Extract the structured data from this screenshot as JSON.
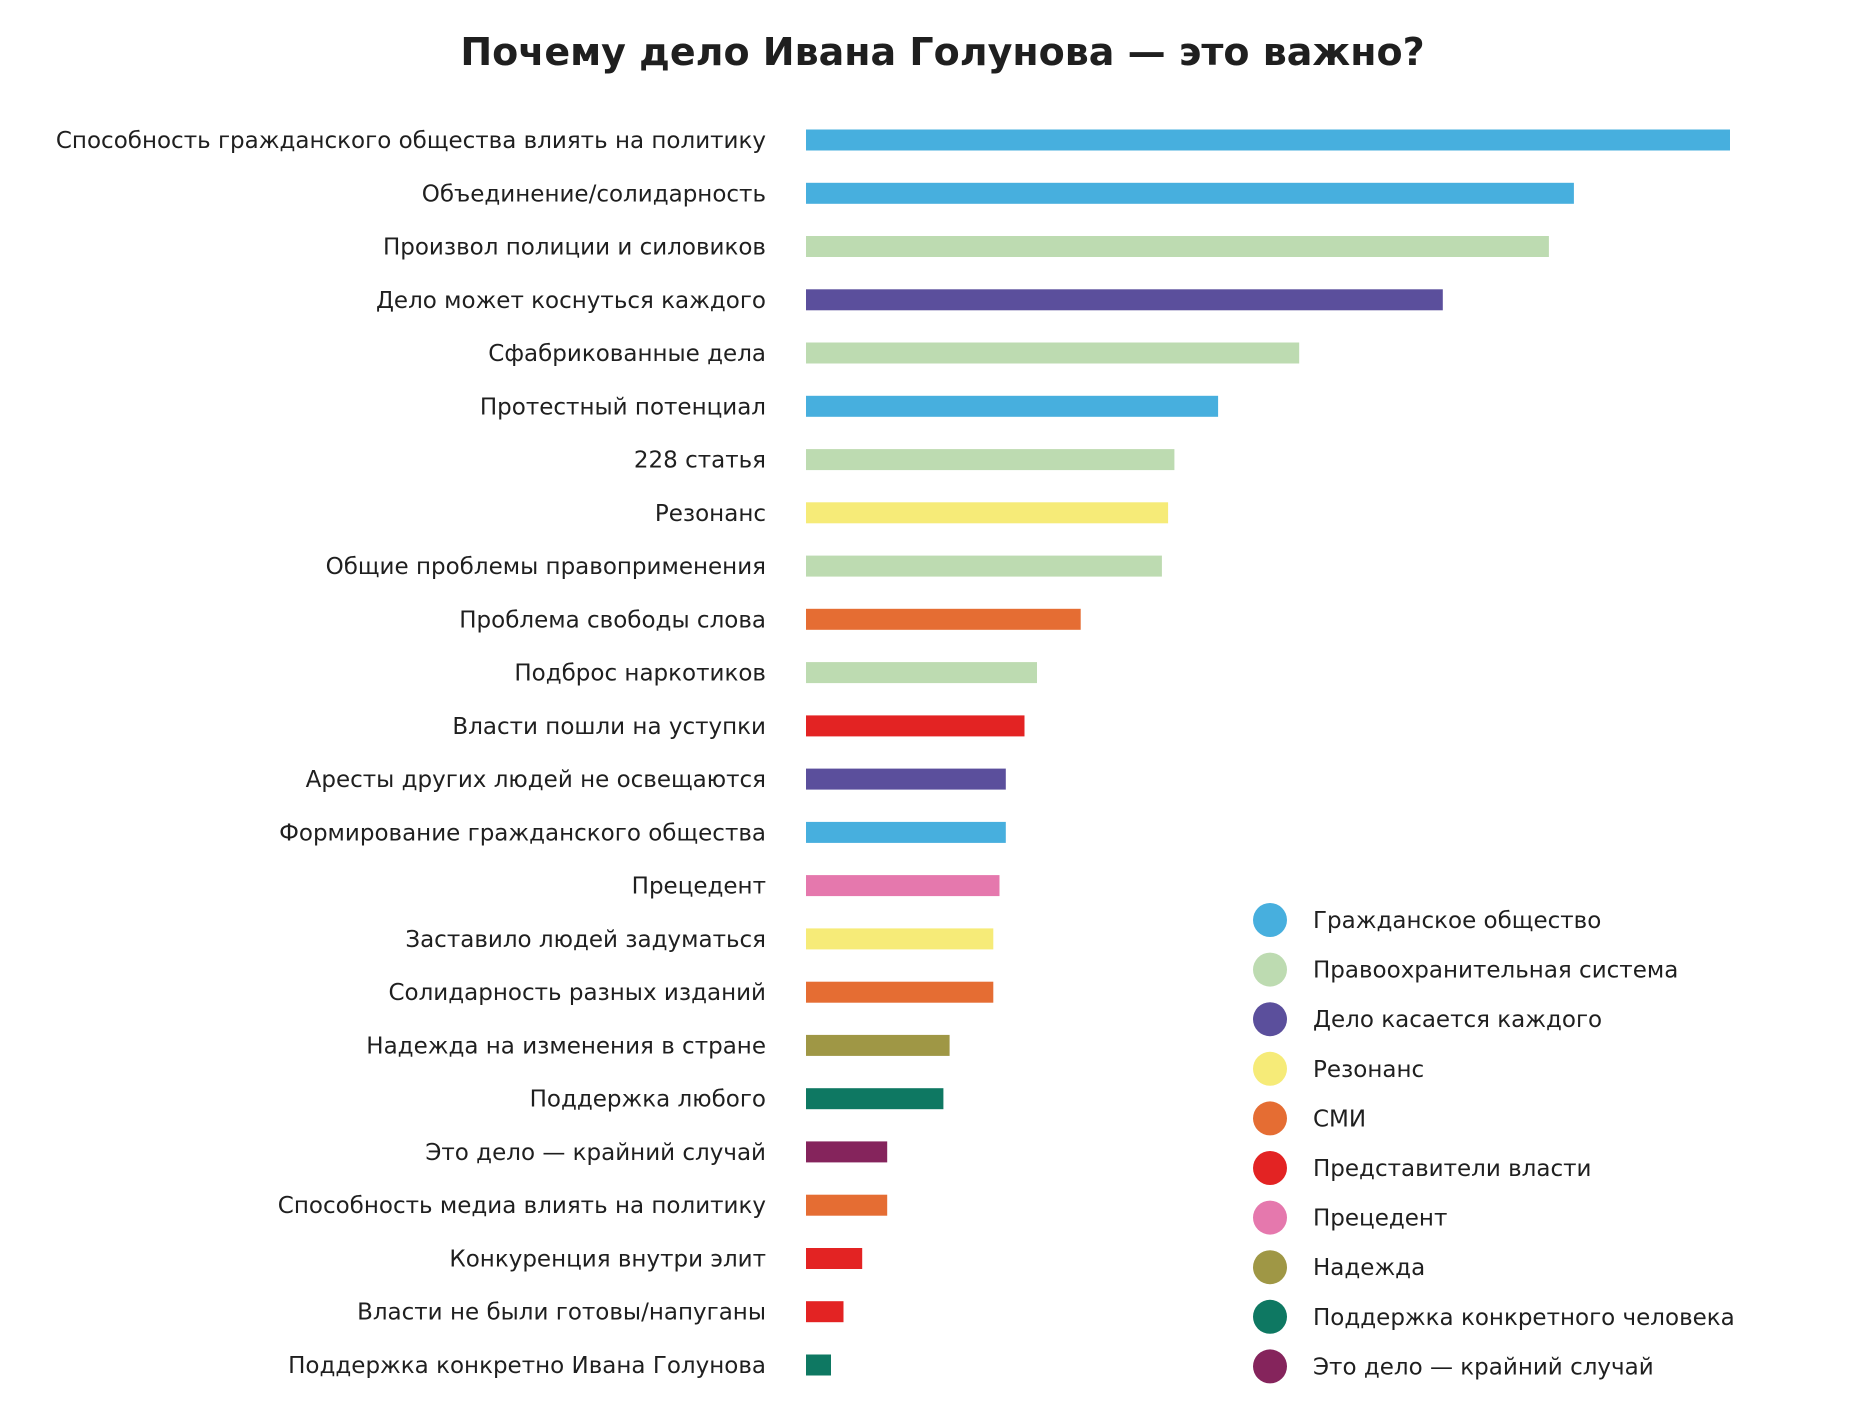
{
  "chart_data": {
    "type": "bar",
    "orientation": "horizontal",
    "title": "Почему дело Ивана Голунова — это важно?",
    "xlabel": "",
    "ylabel": "",
    "axis_visible": false,
    "grid": false,
    "legend_position": "bottom-right",
    "categories": [
      "Способность гражданского общества влиять на политику",
      "Объединение/солидарность",
      "Произвол полиции и силовиков",
      "Дело может коснуться каждого",
      "Сфабрикованные дела",
      "Протестный потенциал",
      "228 статья",
      "Резонанс",
      "Общие проблемы правоприменения",
      "Проблема свободы слова",
      "Подброс наркотиков",
      "Власти пошли на уступки",
      "Аресты других людей не освещаются",
      "Формирование гражданского общества",
      "Прецедент",
      "Заставило людей задуматься",
      "Солидарность разных изданий",
      "Надежда на изменения в стране",
      "Поддержка любого",
      "Это дело — крайний случай",
      "Способность медиа влиять на политику",
      "Конкуренция внутри элит",
      "Власти не были готовы/напуганы",
      "Поддержка конкретно Ивана Голунова"
    ],
    "values": [
      148,
      123,
      119,
      102,
      79,
      66,
      59,
      58,
      57,
      44,
      37,
      35,
      32,
      32,
      31,
      30,
      30,
      23,
      22,
      13,
      13,
      9,
      6,
      4
    ],
    "groups": [
      "Гражданское общество",
      "Гражданское общество",
      "Правоохранительная система",
      "Дело касается каждого",
      "Правоохранительная система",
      "Гражданское общество",
      "Правоохранительная система",
      "Резонанс",
      "Правоохранительная система",
      "СМИ",
      "Правоохранительная система",
      "Представители власти",
      "Дело касается каждого",
      "Гражданское общество",
      "Прецедент",
      "Резонанс",
      "СМИ",
      "Надежда",
      "Поддержка конкретного человека",
      "Это дело — крайний случай",
      "СМИ",
      "Представители власти",
      "Представители власти",
      "Поддержка конкретного человека"
    ],
    "xlim": [
      0,
      148
    ],
    "legend": [
      {
        "name": "Гражданское общество",
        "color": "#47afde"
      },
      {
        "name": "Правоохранительная система",
        "color": "#bddbb1"
      },
      {
        "name": "Дело касается каждого",
        "color": "#5b4f9c"
      },
      {
        "name": "Резонанс",
        "color": "#f6eb78"
      },
      {
        "name": "СМИ",
        "color": "#e56d33"
      },
      {
        "name": "Представители власти",
        "color": "#e32323"
      },
      {
        "name": "Прецедент",
        "color": "#e578ad"
      },
      {
        "name": "Надежда",
        "color": "#9f9745"
      },
      {
        "name": "Поддержка конкретного человека",
        "color": "#0e7862"
      },
      {
        "name": "Это дело — крайний случай",
        "color": "#85245c"
      }
    ]
  }
}
